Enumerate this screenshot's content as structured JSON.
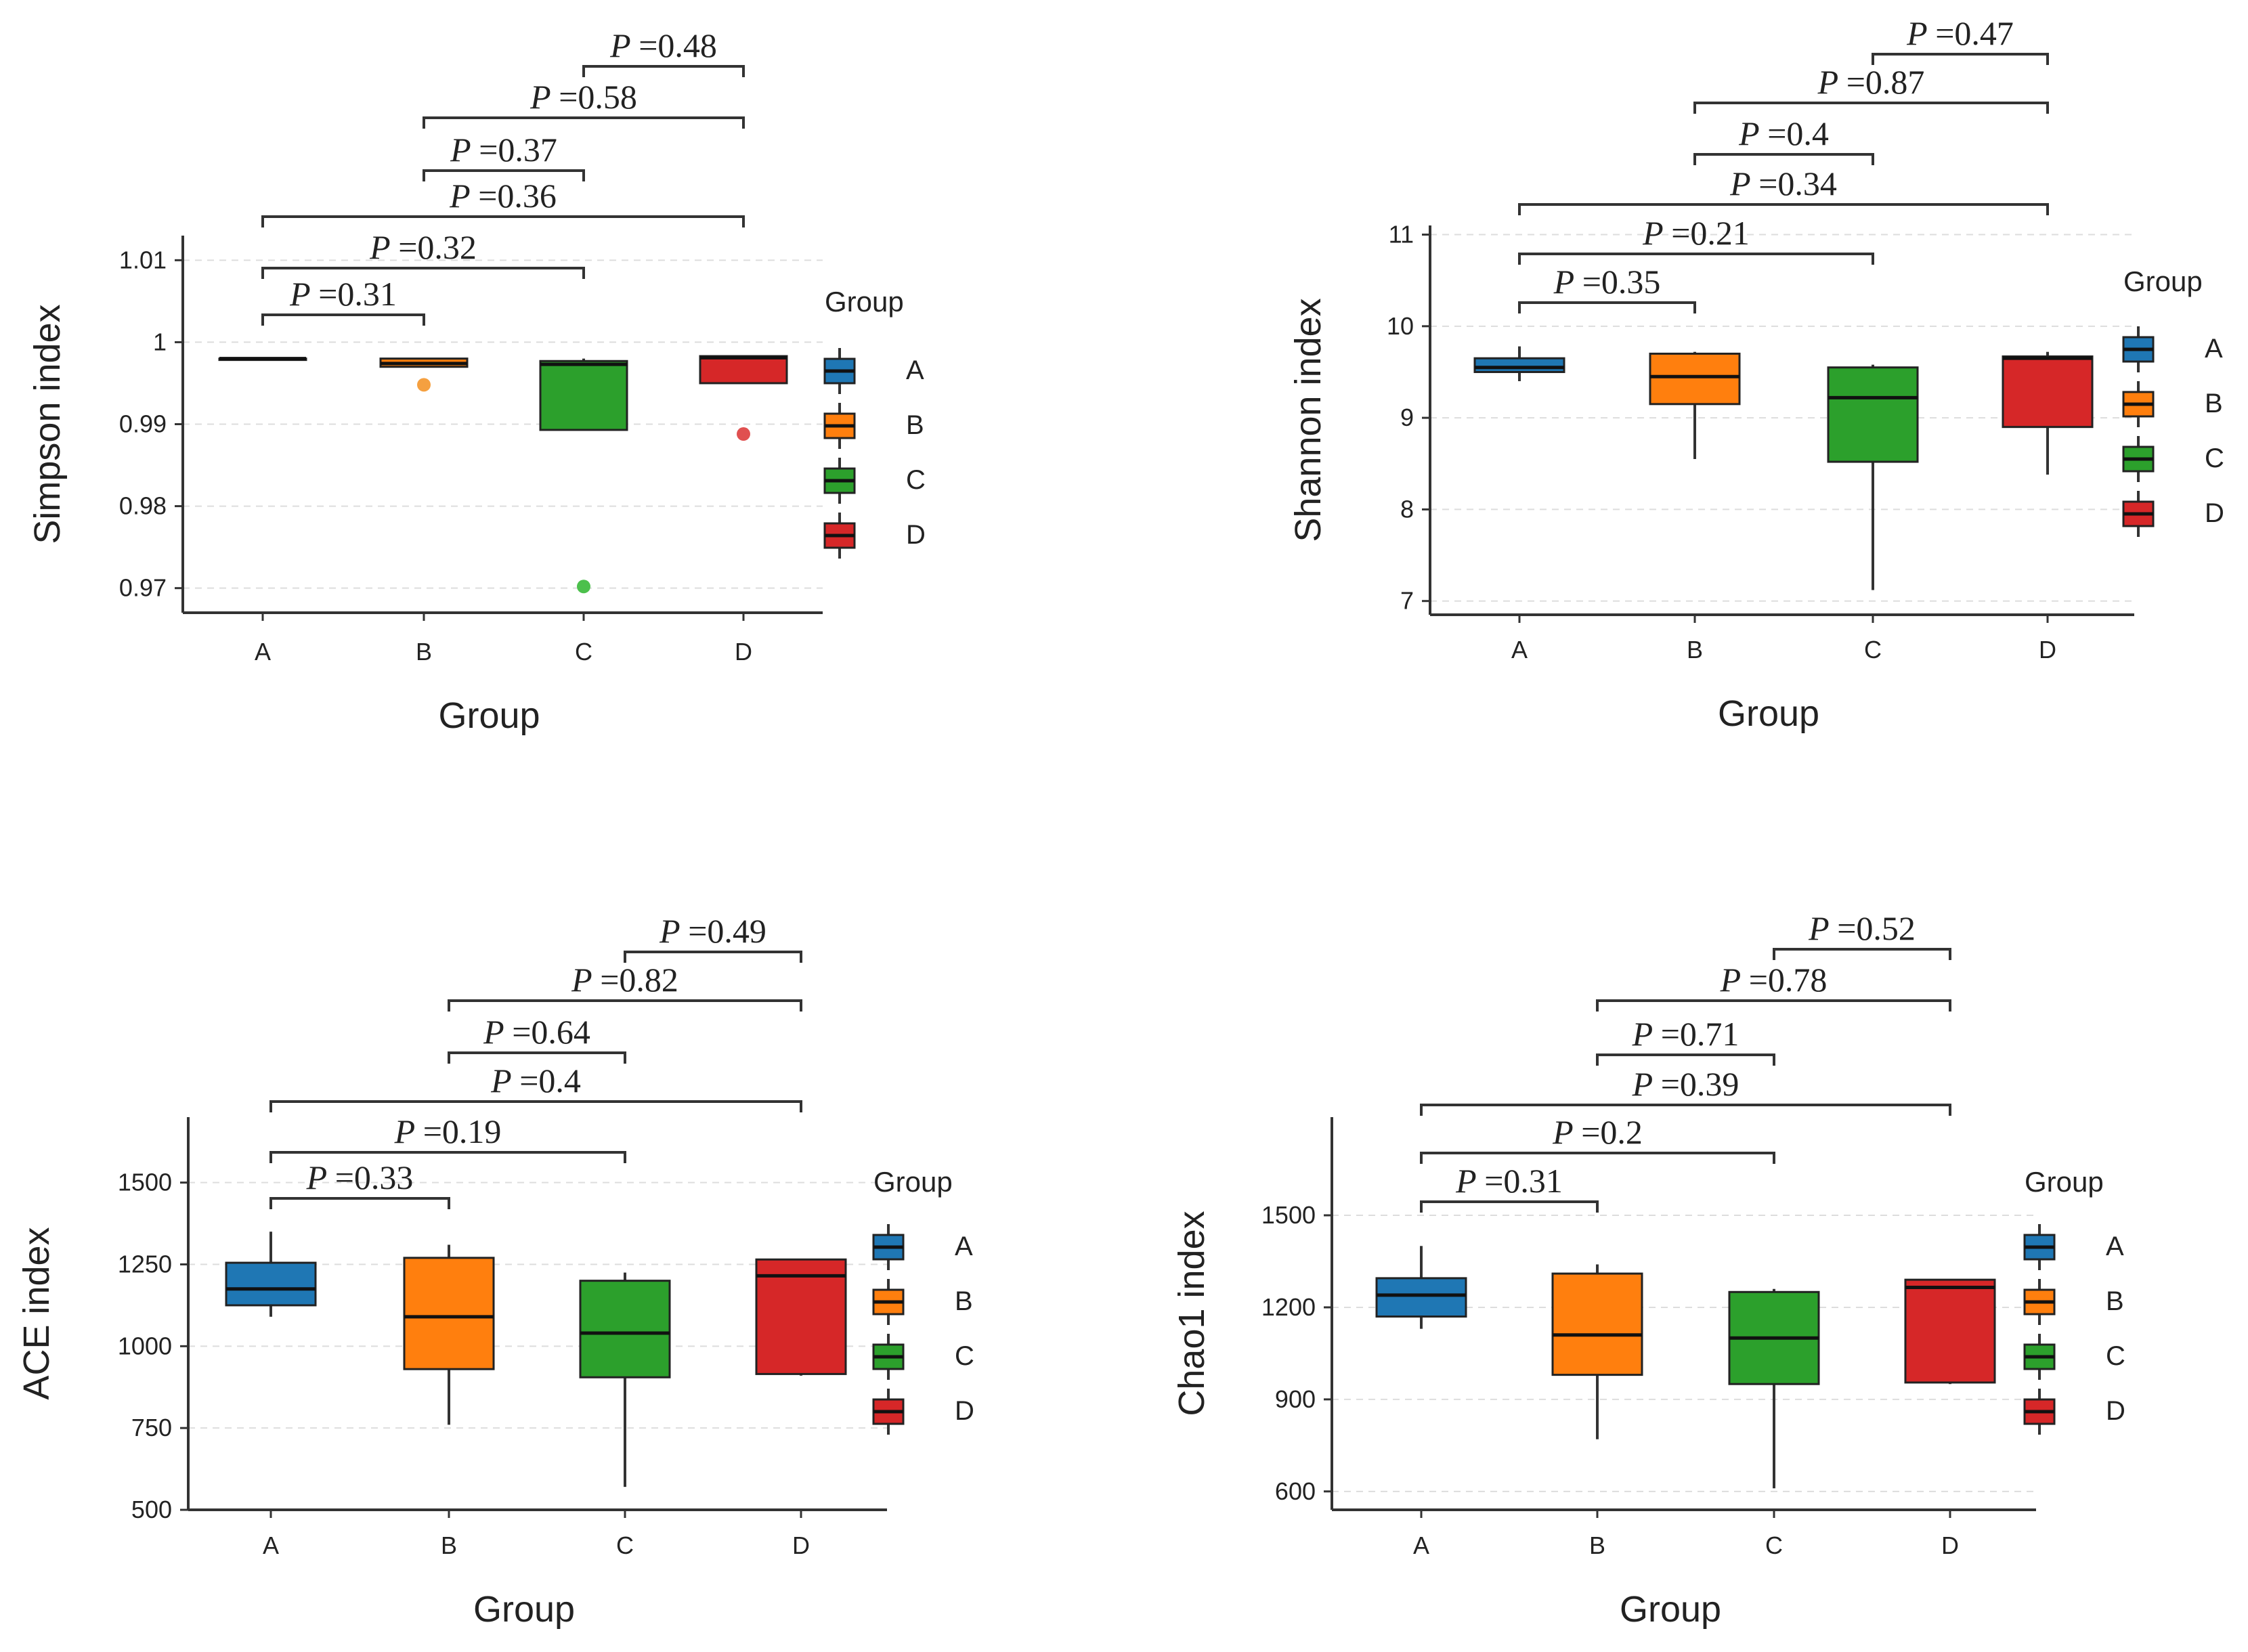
{
  "chart_data": [
    {
      "type": "box",
      "id": "simpson",
      "xlabel": "Group",
      "ylabel": "Simpson index",
      "ylim": [
        0.967,
        1.013
      ],
      "yticks": [
        0.97,
        0.98,
        0.99,
        1,
        1.01
      ],
      "ytick_labels": [
        "0.97",
        "0.98",
        "0.99",
        "1",
        "1.01"
      ],
      "categories": [
        "A",
        "B",
        "C",
        "D"
      ],
      "boxes": [
        {
          "group": "A",
          "min": 0.998,
          "q1": 0.998,
          "median": 0.998,
          "q3": 0.998,
          "max": 0.998,
          "outliers": []
        },
        {
          "group": "B",
          "min": 0.997,
          "q1": 0.997,
          "median": 0.9974,
          "q3": 0.998,
          "max": 0.998,
          "outliers": [
            0.9948
          ]
        },
        {
          "group": "C",
          "min": 0.9893,
          "q1": 0.9893,
          "median": 0.9973,
          "q3": 0.9977,
          "max": 0.998,
          "outliers": [
            0.9702
          ]
        },
        {
          "group": "D",
          "min": 0.995,
          "q1": 0.995,
          "median": 0.9981,
          "q3": 0.9983,
          "max": 0.9983,
          "outliers": [
            0.9888
          ]
        }
      ],
      "comparisons": [
        {
          "from": "A",
          "to": "B",
          "label": "=0.31"
        },
        {
          "from": "A",
          "to": "C",
          "label": "=0.32"
        },
        {
          "from": "A",
          "to": "D",
          "label": "=0.36"
        },
        {
          "from": "B",
          "to": "C",
          "label": "=0.37"
        },
        {
          "from": "B",
          "to": "D",
          "label": "=0.58"
        },
        {
          "from": "C",
          "to": "D",
          "label": "=0.48"
        }
      ],
      "legend": {
        "title": "Group",
        "entries": [
          "A",
          "B",
          "C",
          "D"
        ],
        "position": "right"
      }
    },
    {
      "type": "box",
      "id": "shannon",
      "xlabel": "Group",
      "ylabel": "Shannon index",
      "ylim": [
        6.85,
        11.1
      ],
      "yticks": [
        7,
        8,
        9,
        10,
        11
      ],
      "ytick_labels": [
        "7",
        "8",
        "9",
        "10",
        "11"
      ],
      "categories": [
        "A",
        "B",
        "C",
        "D"
      ],
      "boxes": [
        {
          "group": "A",
          "min": 9.4,
          "q1": 9.5,
          "median": 9.55,
          "q3": 9.65,
          "max": 9.78,
          "outliers": []
        },
        {
          "group": "B",
          "min": 8.55,
          "q1": 9.15,
          "median": 9.45,
          "q3": 9.7,
          "max": 9.72,
          "outliers": []
        },
        {
          "group": "C",
          "min": 7.12,
          "q1": 8.52,
          "median": 9.22,
          "q3": 9.55,
          "max": 9.58,
          "outliers": []
        },
        {
          "group": "D",
          "min": 8.38,
          "q1": 8.9,
          "median": 9.65,
          "q3": 9.67,
          "max": 9.72,
          "outliers": []
        }
      ],
      "comparisons": [
        {
          "from": "A",
          "to": "B",
          "label": "=0.35"
        },
        {
          "from": "A",
          "to": "C",
          "label": "=0.21"
        },
        {
          "from": "A",
          "to": "D",
          "label": "=0.34"
        },
        {
          "from": "B",
          "to": "C",
          "label": "=0.4"
        },
        {
          "from": "B",
          "to": "D",
          "label": "=0.87"
        },
        {
          "from": "C",
          "to": "D",
          "label": "=0.47"
        }
      ],
      "legend": {
        "title": "Group",
        "entries": [
          "A",
          "B",
          "C",
          "D"
        ],
        "position": "right"
      }
    },
    {
      "type": "box",
      "id": "ace",
      "xlabel": "Group",
      "ylabel": "ACE index",
      "ylim": [
        500,
        1700
      ],
      "yticks": [
        500,
        750,
        1000,
        1250,
        1500
      ],
      "ytick_labels": [
        "500",
        "750",
        "1000",
        "1250",
        "1500"
      ],
      "categories": [
        "A",
        "B",
        "C",
        "D"
      ],
      "boxes": [
        {
          "group": "A",
          "min": 1090,
          "q1": 1125,
          "median": 1175,
          "q3": 1255,
          "max": 1350,
          "outliers": []
        },
        {
          "group": "B",
          "min": 760,
          "q1": 930,
          "median": 1090,
          "q3": 1270,
          "max": 1310,
          "outliers": []
        },
        {
          "group": "C",
          "min": 570,
          "q1": 905,
          "median": 1040,
          "q3": 1200,
          "max": 1225,
          "outliers": []
        },
        {
          "group": "D",
          "min": 910,
          "q1": 915,
          "median": 1215,
          "q3": 1265,
          "max": 1265,
          "outliers": []
        }
      ],
      "comparisons": [
        {
          "from": "A",
          "to": "B",
          "label": "=0.33"
        },
        {
          "from": "A",
          "to": "C",
          "label": "=0.19"
        },
        {
          "from": "A",
          "to": "D",
          "label": "=0.4"
        },
        {
          "from": "B",
          "to": "C",
          "label": "=0.64"
        },
        {
          "from": "B",
          "to": "D",
          "label": "=0.82"
        },
        {
          "from": "C",
          "to": "D",
          "label": "=0.49"
        }
      ],
      "legend": {
        "title": "Group",
        "entries": [
          "A",
          "B",
          "C",
          "D"
        ],
        "position": "right"
      }
    },
    {
      "type": "box",
      "id": "chao1",
      "xlabel": "Group",
      "ylabel": "Chao1 index",
      "ylim": [
        540,
        1820
      ],
      "yticks": [
        600,
        900,
        1200,
        1500
      ],
      "ytick_labels": [
        "600",
        "900",
        "1200",
        "1500"
      ],
      "categories": [
        "A",
        "B",
        "C",
        "D"
      ],
      "boxes": [
        {
          "group": "A",
          "min": 1130,
          "q1": 1170,
          "median": 1240,
          "q3": 1295,
          "max": 1400,
          "outliers": []
        },
        {
          "group": "B",
          "min": 770,
          "q1": 980,
          "median": 1110,
          "q3": 1310,
          "max": 1340,
          "outliers": []
        },
        {
          "group": "C",
          "min": 610,
          "q1": 950,
          "median": 1100,
          "q3": 1250,
          "max": 1260,
          "outliers": []
        },
        {
          "group": "D",
          "min": 950,
          "q1": 955,
          "median": 1265,
          "q3": 1290,
          "max": 1290,
          "outliers": []
        }
      ],
      "comparisons": [
        {
          "from": "A",
          "to": "B",
          "label": "=0.31"
        },
        {
          "from": "A",
          "to": "C",
          "label": "=0.2"
        },
        {
          "from": "A",
          "to": "D",
          "label": "=0.39"
        },
        {
          "from": "B",
          "to": "C",
          "label": "=0.71"
        },
        {
          "from": "B",
          "to": "D",
          "label": "=0.78"
        },
        {
          "from": "C",
          "to": "D",
          "label": "=0.52"
        }
      ],
      "legend": {
        "title": "Group",
        "entries": [
          "A",
          "B",
          "C",
          "D"
        ],
        "position": "right"
      }
    }
  ],
  "p_symbol": "P",
  "colors": {
    "A": "#1f77b4",
    "B": "#ff7f0e",
    "C": "#2ca02c",
    "D": "#d62728"
  },
  "outlier_colors": {
    "A": "#3a8ad0",
    "B": "#f5a040",
    "C": "#4cc04c",
    "D": "#e05050"
  }
}
